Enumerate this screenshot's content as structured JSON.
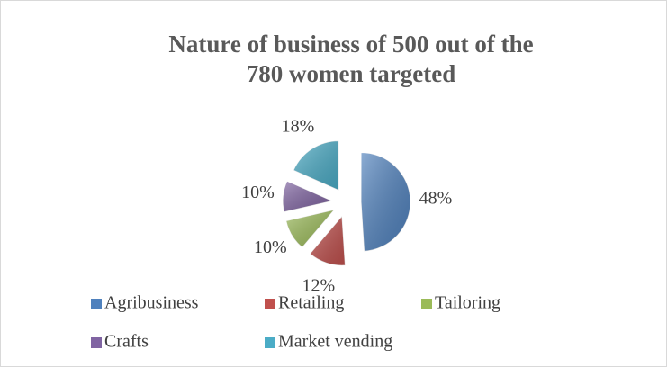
{
  "chart_data": {
    "type": "pie",
    "title": "Nature of business of 500 out of the 780 women targeted",
    "categories": [
      "Agribusiness",
      "Retailing",
      "Tailoring",
      "Crafts",
      "Market vending"
    ],
    "values": [
      48,
      12,
      10,
      10,
      18
    ],
    "value_labels": [
      "48%",
      "12%",
      "10%",
      "10%",
      "18%"
    ],
    "colors": [
      "#4f81bd",
      "#c0504d",
      "#9bbb59",
      "#8064a2",
      "#4bacc6"
    ],
    "legend": "bottom"
  }
}
